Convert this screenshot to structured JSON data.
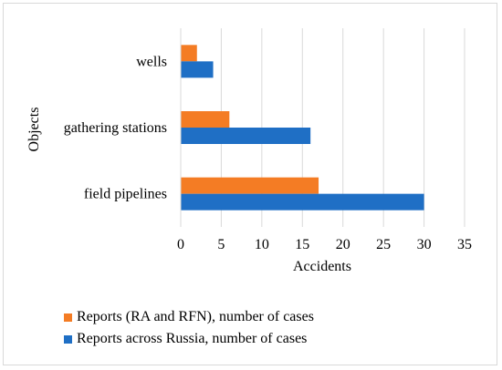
{
  "chart_data": {
    "type": "bar",
    "orientation": "horizontal",
    "title": "",
    "xlabel": "Accidents",
    "ylabel": "Objects",
    "categories": [
      "field pipelines",
      "gathering stations",
      "wells"
    ],
    "series": [
      {
        "name": "Reports across Russia, number of cases",
        "color": "#1f6fc5",
        "values": [
          30,
          16,
          4
        ]
      },
      {
        "name": "Reports (RA and RFN), number of cases",
        "color": "#f47c24",
        "values": [
          17,
          6,
          2
        ]
      }
    ],
    "xlim": [
      0,
      35
    ],
    "xticks": [
      "0",
      "5",
      "10",
      "15",
      "20",
      "25",
      "30",
      "35"
    ],
    "grid": "vertical",
    "legend_placement": "bottom-left",
    "legend_order": [
      1,
      0
    ]
  }
}
